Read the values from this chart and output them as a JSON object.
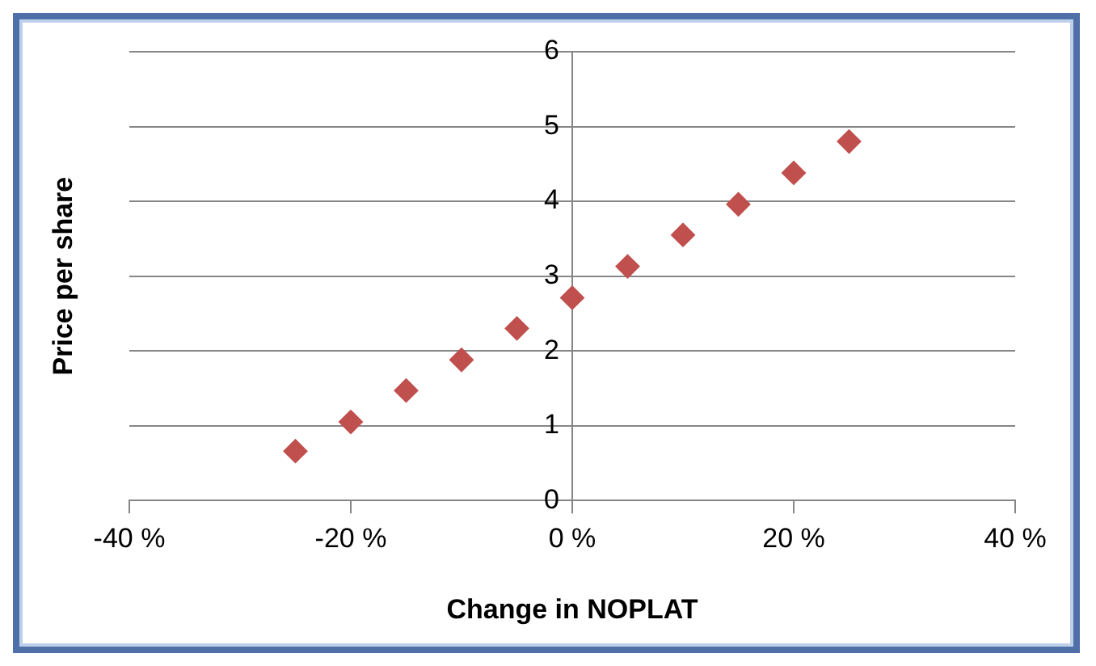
{
  "chart_data": {
    "type": "scatter",
    "xlabel": "Change in NOPLAT",
    "ylabel": "Price per share",
    "x": [
      -25,
      -20,
      -15,
      -10,
      -5,
      0,
      5,
      10,
      15,
      20,
      25
    ],
    "series": [
      {
        "color": "#c0504d",
        "values": [
          0.66,
          1.05,
          1.47,
          1.88,
          2.3,
          2.71,
          3.13,
          3.55,
          3.96,
          4.38,
          4.8
        ]
      }
    ],
    "xlim": [
      -40,
      40
    ],
    "xticks": [
      {
        "value": -40,
        "label": "-40 %"
      },
      {
        "value": -20,
        "label": "-20 %"
      },
      {
        "value": 0,
        "label": "0 %"
      },
      {
        "value": 20,
        "label": "20 %"
      },
      {
        "value": 40,
        "label": "40 %"
      }
    ],
    "ylim": [
      0,
      6
    ],
    "yticks": [
      0,
      1,
      2,
      3,
      4,
      5,
      6
    ],
    "grid": "y",
    "legend": false,
    "marker": "diamond"
  }
}
